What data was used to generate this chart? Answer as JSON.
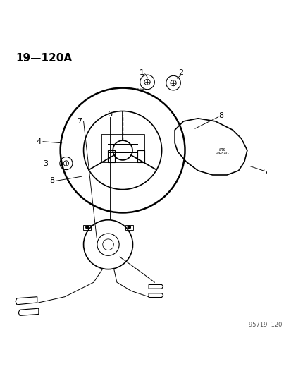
{
  "title": "19—120A",
  "footer": "95719  120",
  "background_color": "#ffffff",
  "line_color": "#000000",
  "figsize": [
    4.14,
    5.33
  ],
  "dpi": 100
}
